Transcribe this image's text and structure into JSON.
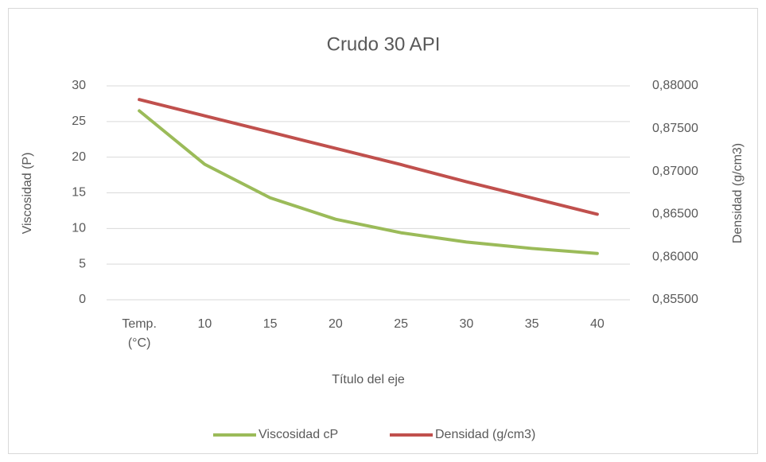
{
  "chart_data": {
    "type": "line",
    "title": "Crudo 30 API",
    "x_label": "Título del eje",
    "y_label": "Viscosidad (P)",
    "y2_label": "Densidad (g/cm3)",
    "categories": [
      "Temp. (°C)",
      "10",
      "15",
      "20",
      "25",
      "30",
      "35",
      "40"
    ],
    "series": [
      {
        "name": "Viscosidad cP",
        "color": "#9bbb59",
        "values": [
          26.5,
          19,
          14.3,
          11.3,
          9.4,
          8.1,
          7.2,
          6.5
        ]
      },
      {
        "name": "Densidad (g/cm3)",
        "color": "#c0504d",
        "axis": "y2",
        "values": [
          0.8784,
          0.8765,
          0.8746,
          0.8727,
          0.8708,
          0.8688,
          0.8669,
          0.865
        ]
      }
    ],
    "ylim": [
      0,
      30
    ],
    "yticks": [
      0,
      5,
      10,
      15,
      20,
      25,
      30
    ],
    "y2lim": [
      0.855,
      0.88
    ],
    "y2ticks": [
      {
        "value": 0.855,
        "label": "0,85500"
      },
      {
        "value": 0.86,
        "label": "0,86000"
      },
      {
        "value": 0.865,
        "label": "0,86500"
      },
      {
        "value": 0.87,
        "label": "0,87000"
      },
      {
        "value": 0.875,
        "label": "0,87500"
      },
      {
        "value": 0.88,
        "label": "0,88000"
      }
    ],
    "grid": true,
    "legend": "bottom"
  }
}
